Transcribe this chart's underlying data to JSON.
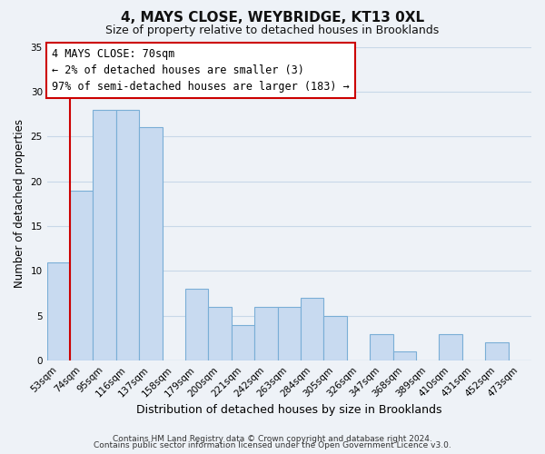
{
  "title": "4, MAYS CLOSE, WEYBRIDGE, KT13 0XL",
  "subtitle": "Size of property relative to detached houses in Brooklands",
  "xlabel": "Distribution of detached houses by size in Brooklands",
  "ylabel": "Number of detached properties",
  "footer_line1": "Contains HM Land Registry data © Crown copyright and database right 2024.",
  "footer_line2": "Contains public sector information licensed under the Open Government Licence v3.0.",
  "bin_labels": [
    "53sqm",
    "74sqm",
    "95sqm",
    "116sqm",
    "137sqm",
    "158sqm",
    "179sqm",
    "200sqm",
    "221sqm",
    "242sqm",
    "263sqm",
    "284sqm",
    "305sqm",
    "326sqm",
    "347sqm",
    "368sqm",
    "389sqm",
    "410sqm",
    "431sqm",
    "452sqm",
    "473sqm"
  ],
  "bar_values": [
    11,
    19,
    28,
    28,
    26,
    0,
    8,
    6,
    4,
    6,
    6,
    7,
    5,
    0,
    3,
    1,
    0,
    3,
    0,
    2,
    0
  ],
  "bar_color": "#c8daf0",
  "bar_edge_color": "#7aaed6",
  "red_line_index": 1,
  "highlight_color": "#cc0000",
  "ylim": [
    0,
    35
  ],
  "yticks": [
    0,
    5,
    10,
    15,
    20,
    25,
    30,
    35
  ],
  "annotation_title": "4 MAYS CLOSE: 70sqm",
  "annotation_line1": "← 2% of detached houses are smaller (3)",
  "annotation_line2": "97% of semi-detached houses are larger (183) →",
  "annotation_box_color": "#ffffff",
  "annotation_border_color": "#cc0000",
  "grid_color": "#c8d8e8",
  "background_color": "#eef2f7",
  "title_fontsize": 11,
  "subtitle_fontsize": 9,
  "tick_fontsize": 7.5,
  "ylabel_fontsize": 8.5,
  "xlabel_fontsize": 9,
  "footer_fontsize": 6.5
}
